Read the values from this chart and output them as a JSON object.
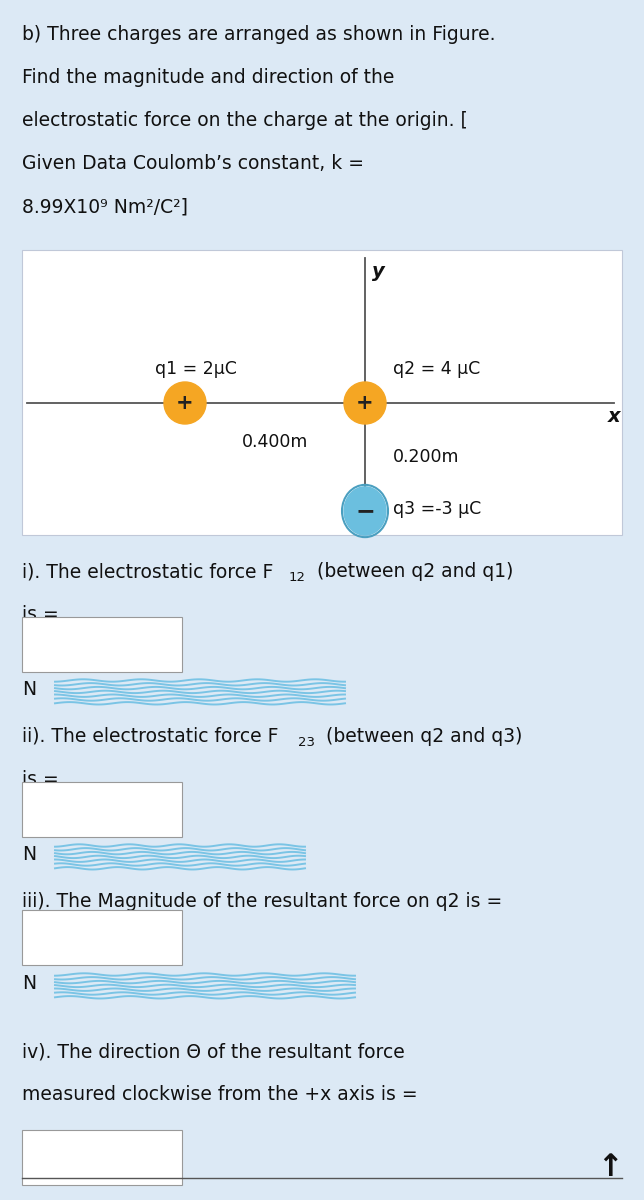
{
  "bg_color": "#dce9f5",
  "white_bg": "#ffffff",
  "title_lines": [
    "b) Three charges are arranged as shown in Figure.",
    "Find the magnitude and direction of the",
    "electrostatic force on the charge at the origin. [",
    "Given Data Coulomb’s constant, k =",
    "8.99X10⁹ Nm²/C²]"
  ],
  "q1_label": "q1 = 2μC",
  "q2_label": "q2 = 4 μC",
  "q3_label": "q3 =-3 μC",
  "dist_q1_q2": "0.400m",
  "dist_q2_q3": "0.200m",
  "q1_color": "#f5a623",
  "q2_color": "#f5a623",
  "q3_color": "#6bbfdf",
  "q3_border": "#4a9fc0",
  "axis_color": "#555555",
  "q1_i": "i). The electrostatic force F",
  "q1_sub": "12",
  "q1_suffix": " (between q2 and q1)",
  "q2_i": "ii). The electrostatic force F",
  "q2_sub": "23",
  "q2_suffix": " (between q2 and q3)",
  "q3_i": "iii). The Magnitude of the resultant force on q2 is =",
  "q4_line1": "iv). The direction Θ of the resultant force",
  "q4_line2": "measured clockwise from the +x axis is =",
  "is_eq": "is =",
  "unit_N": "N",
  "blur_color": "#5ab8e0",
  "box_edge": "#aaaaaa",
  "font_size": 13.5
}
